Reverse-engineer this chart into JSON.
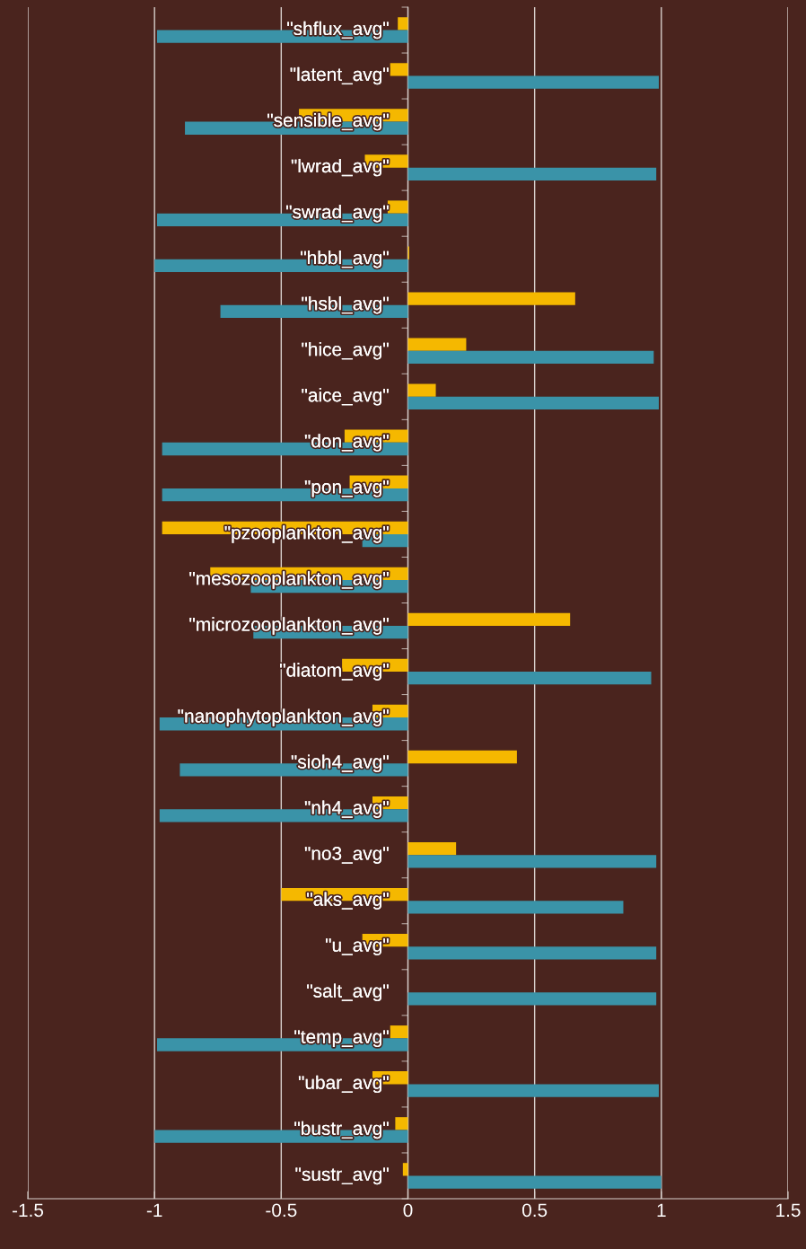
{
  "chart_data": {
    "type": "bar",
    "orientation": "horizontal",
    "categories": [
      "\"shflux_avg\"",
      "\"latent_avg\"",
      "\"sensible_avg\"",
      "\"lwrad_avg\"",
      "\"swrad_avg\"",
      "\"hbbl_avg\"",
      "\"hsbl_avg\"",
      "\"hice_avg\"",
      "\"aice_avg\"",
      "\"don_avg\"",
      "\"pon_avg\"",
      "\"pzooplankton_avg\"",
      "\"mesozooplankton_avg\"",
      "\"microzooplankton_avg\"",
      "\"diatom_avg\"",
      "\"nanophytoplankton_avg\"",
      "\"sioh4_avg\"",
      "\"nh4_avg\"",
      "\"no3_avg\"",
      "\"aks_avg\"",
      "\"u_avg\"",
      "\"salt_avg\"",
      "\"temp_avg\"",
      "\"ubar_avg\"",
      "\"bustr_avg\"",
      "\"sustr_avg\""
    ],
    "series": [
      {
        "color": "#f5b800",
        "values": [
          -0.04,
          -0.07,
          -0.43,
          -0.17,
          -0.08,
          0.005,
          0.66,
          0.23,
          0.11,
          -0.25,
          -0.23,
          -0.97,
          -0.78,
          0.64,
          -0.26,
          -0.14,
          0.43,
          -0.14,
          0.19,
          -0.5,
          -0.18,
          null,
          -0.07,
          -0.14,
          -0.05,
          -0.02
        ]
      },
      {
        "color": "#3a93a8",
        "values": [
          -0.99,
          0.99,
          -0.88,
          0.98,
          -0.99,
          -1.0,
          -0.74,
          0.97,
          0.99,
          -0.97,
          -0.97,
          -0.18,
          -0.62,
          -0.61,
          0.96,
          -0.98,
          -0.9,
          -0.98,
          0.98,
          0.85,
          0.98,
          0.98,
          -0.99,
          0.99,
          -1.0,
          1.0
        ]
      }
    ],
    "xlim": [
      -1.5,
      1.5
    ],
    "xticks": [
      -1.5,
      -1,
      -0.5,
      0,
      0.5,
      1,
      1.5
    ],
    "grid": "x"
  }
}
